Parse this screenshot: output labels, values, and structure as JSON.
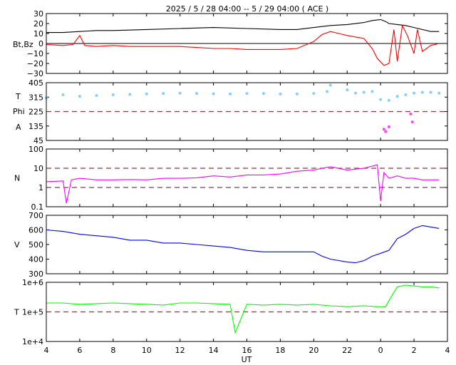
{
  "title": "2025 /  5 / 28   04:00 -- 5 / 29   04:00 ( ACE )",
  "x_axis_label": "UT",
  "x_tick_labels": [
    "4",
    "6",
    "8",
    "10",
    "12",
    "14",
    "16",
    "18",
    "20",
    "22",
    "0",
    "2",
    "4"
  ],
  "colors": {
    "bt": "#000000",
    "bz": "#ff0000",
    "temp_phi": "#87cefa",
    "phi_points": "#ff44ff",
    "density": "#ff00ff",
    "speed": "#0000ff",
    "temperature": "#00ff00",
    "reference": "#8b3a3a"
  },
  "chart_data": [
    {
      "type": "line",
      "panel": "magnetic_field",
      "ylabel": "Bt,Bz",
      "ylim": [
        -30,
        30
      ],
      "y_ticks": [
        "30",
        "20",
        "10",
        "0",
        "−10",
        "−20",
        "−30"
      ],
      "reference_line": 0,
      "x_unit": "hours UT (continuous from 28 May 04:00)",
      "series": [
        {
          "key": "bt",
          "x": [
            4,
            5,
            6,
            7,
            8,
            10,
            12,
            14,
            16,
            18,
            19,
            20,
            21,
            22,
            23,
            23.5,
            24,
            24.3,
            24.5,
            25,
            25.5,
            26,
            26.5,
            27,
            27.5
          ],
          "y": [
            11,
            11,
            12,
            13,
            13,
            14,
            15,
            16,
            15,
            14,
            14,
            16,
            18,
            19,
            21,
            23,
            24,
            22,
            20,
            19,
            18,
            16,
            14,
            12,
            12
          ]
        },
        {
          "key": "bz",
          "x": [
            4,
            5,
            5.6,
            6,
            6.3,
            7,
            8,
            9,
            10,
            11,
            12,
            13,
            14,
            15,
            16,
            17,
            18,
            19,
            20,
            20.5,
            21,
            21.5,
            22,
            23,
            23.5,
            23.8,
            24.2,
            24.5,
            24.8,
            25,
            25.3,
            25.6,
            26,
            26.2,
            26.5,
            27,
            27.5
          ],
          "y": [
            -1,
            -2,
            -1,
            8,
            -2,
            -3,
            -2,
            -3,
            -3,
            -3,
            -3,
            -4,
            -5,
            -5,
            -6,
            -6,
            -6,
            -5,
            2,
            9,
            12,
            10,
            8,
            5,
            -5,
            -15,
            -22,
            -20,
            14,
            -18,
            18,
            8,
            -10,
            14,
            -8,
            -2,
            0
          ]
        }
      ]
    },
    {
      "type": "scatter",
      "panel": "imf_phi",
      "ylabel_top": "T",
      "ylabel_mid": "Phi",
      "ylabel_bottom": "A",
      "ylim": [
        45,
        405
      ],
      "y_ticks": [
        "405",
        "315",
        "225",
        "135",
        "45"
      ],
      "reference_line": 225,
      "series": [
        {
          "key": "temp_phi",
          "x": [
            4,
            5,
            6,
            7,
            8,
            9,
            10,
            11,
            12,
            13,
            14,
            15,
            16,
            17,
            18,
            19,
            20,
            20.8,
            21,
            22,
            22.5,
            23,
            23.5,
            24,
            24.5,
            25,
            25.5,
            26,
            26.5,
            27,
            27.5
          ],
          "y": [
            310,
            330,
            320,
            325,
            330,
            332,
            335,
            338,
            340,
            338,
            336,
            335,
            338,
            338,
            335,
            335,
            338,
            350,
            390,
            360,
            340,
            345,
            350,
            300,
            295,
            320,
            330,
            340,
            345,
            345,
            340
          ]
        },
        {
          "key": "phi_points",
          "x": [
            24.2,
            24.3,
            24.5,
            25.8,
            25.9
          ],
          "y": [
            115,
            100,
            130,
            210,
            160
          ]
        }
      ]
    },
    {
      "type": "line",
      "panel": "proton_density",
      "ylabel": "N",
      "y_scale": "log",
      "ylim": [
        0.1,
        100
      ],
      "y_ticks": [
        "100",
        "10",
        "1",
        "0.1"
      ],
      "reference_lines": [
        10,
        1
      ],
      "series": [
        {
          "key": "density",
          "x": [
            4,
            5,
            5.2,
            5.5,
            6,
            7,
            8,
            9,
            10,
            11,
            12,
            13,
            14,
            15,
            16,
            17,
            18,
            19,
            20,
            20.5,
            21,
            22,
            23,
            23.8,
            24,
            24.2,
            24.5,
            25,
            25.5,
            26,
            26.5,
            27,
            27.5
          ],
          "y": [
            2.0,
            2.2,
            0.15,
            2.5,
            3.0,
            2.5,
            2.5,
            2.6,
            2.5,
            3.0,
            3.0,
            3.2,
            4.0,
            3.5,
            4.5,
            4.5,
            5.0,
            7.0,
            8.0,
            10,
            12,
            8,
            10,
            15,
            0.2,
            6,
            3,
            4,
            3,
            3,
            2.5,
            2.5,
            2.5
          ]
        }
      ]
    },
    {
      "type": "line",
      "panel": "bulk_speed",
      "ylabel": "V",
      "ylim": [
        300,
        700
      ],
      "y_ticks": [
        "700",
        "600",
        "500",
        "400",
        "300"
      ],
      "series": [
        {
          "key": "speed",
          "x": [
            4,
            5,
            6,
            7,
            8,
            9,
            10,
            11,
            12,
            13,
            14,
            15,
            16,
            17,
            18,
            19,
            20,
            20.5,
            21,
            22,
            22.5,
            23,
            23.5,
            24,
            24.5,
            25,
            25.5,
            26,
            26.5,
            27,
            27.5
          ],
          "y": [
            600,
            590,
            570,
            560,
            550,
            530,
            530,
            510,
            510,
            500,
            490,
            480,
            460,
            450,
            450,
            450,
            450,
            420,
            400,
            380,
            375,
            390,
            420,
            440,
            460,
            540,
            570,
            610,
            630,
            620,
            610
          ]
        }
      ]
    },
    {
      "type": "line",
      "panel": "ion_temperature",
      "ylabel": "T",
      "y_scale": "log",
      "ylim": [
        10000,
        1000000
      ],
      "y_ticks": [
        "1e+6",
        "1e+5",
        "1e+4"
      ],
      "reference_line": 100000,
      "series": [
        {
          "key": "temperature",
          "x": [
            4,
            5,
            6,
            7,
            8,
            9,
            10,
            11,
            12,
            13,
            14,
            15,
            15.3,
            16,
            17,
            18,
            19,
            20,
            21,
            22,
            23,
            23.8,
            24.3,
            24.6,
            25,
            25.5,
            26,
            26.5,
            27,
            27.5
          ],
          "y": [
            200000,
            200000,
            180000,
            190000,
            200000,
            190000,
            180000,
            170000,
            200000,
            200000,
            190000,
            180000,
            20000,
            180000,
            170000,
            180000,
            170000,
            180000,
            160000,
            150000,
            160000,
            150000,
            150000,
            300000,
            700000,
            800000,
            750000,
            700000,
            700000,
            650000
          ]
        }
      ]
    }
  ]
}
